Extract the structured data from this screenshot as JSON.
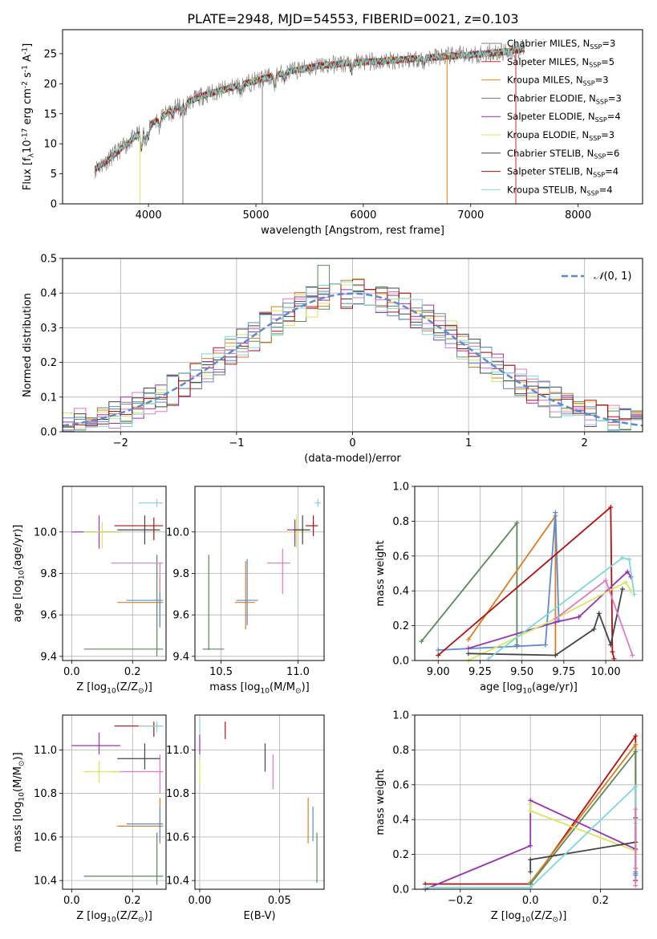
{
  "colors": {
    "chabrier_miles": "#7f7f7f",
    "salpeter_miles": "#d62728",
    "kroupa_miles": "#ff7f0e",
    "chabrier_elodie": "#5a8a5a",
    "salpeter_elodie": "#9b30b0",
    "kroupa_elodie": "#d4e85a",
    "chabrier_stelib": "#444444",
    "salpeter_stelib": "#b01010",
    "kroupa_stelib": "#7fd8d8",
    "normal_curve": "#5b8bd0",
    "pink": "#e377c2",
    "blue": "#5b8bd0",
    "green": "#5a8a5a",
    "orange": "#e07b20"
  },
  "chart_data": [
    {
      "id": "spectrum",
      "type": "line",
      "title": "PLATE=2948, MJD=54553, FIBERID=0021, z=0.103",
      "xlabel": "wavelength [Angstrom, rest frame]",
      "ylabel": "Flux [f$_\\lambda$10$^{-17}$ erg cm$^{-2}$ s$^{-1}$ A$^{-1}$]",
      "xlim": [
        3200,
        8600
      ],
      "ylim": [
        0,
        29
      ],
      "xticks": [
        "4000",
        "5000",
        "6000",
        "7000",
        "8000"
      ],
      "yticks": [
        "0",
        "5",
        "10",
        "15",
        "20",
        "25"
      ],
      "legend": [
        "Chabrier MILES, N$_{SSP}$=3",
        "Salpeter MILES, N$_{SSP}$=5",
        "Kroupa MILES, N$_{SSP}$=3",
        "Chabrier ELODIE, N$_{SSP}$=3",
        "Salpeter ELODIE, N$_{SSP}$=4",
        "Kroupa ELODIE, N$_{SSP}$=3",
        "Chabrier STELIB, N$_{SSP}$=6",
        "Salpeter STELIB, N$_{SSP}$=4",
        "Kroupa STELIB, N$_{SSP}$=4"
      ],
      "continuum": [
        [
          3500,
          5.8
        ],
        [
          3600,
          7
        ],
        [
          3700,
          8.5
        ],
        [
          3800,
          10
        ],
        [
          3900,
          11.5
        ],
        [
          4000,
          13
        ],
        [
          4200,
          15.5
        ],
        [
          4500,
          18
        ],
        [
          4800,
          19.5
        ],
        [
          5000,
          20.5
        ],
        [
          5300,
          22
        ],
        [
          5600,
          23
        ],
        [
          5900,
          23.5
        ],
        [
          6200,
          23.8
        ],
        [
          6500,
          24.2
        ],
        [
          6800,
          24.6
        ],
        [
          7000,
          24.8
        ],
        [
          7300,
          25.3
        ],
        [
          7500,
          25.8
        ]
      ],
      "spikes": [
        [
          4320,
          0
        ],
        [
          5060,
          0
        ],
        [
          6780,
          0
        ],
        [
          7420,
          0
        ],
        [
          3920,
          0
        ]
      ]
    },
    {
      "id": "residuals",
      "type": "histogram",
      "xlabel": "(data-model)/error",
      "ylabel": "Normed distribution",
      "xlim": [
        -2.5,
        2.5
      ],
      "ylim": [
        0,
        0.5
      ],
      "xticks": [
        "−2",
        "−1",
        "0",
        "1",
        "2"
      ],
      "yticks": [
        "0.0",
        "0.1",
        "0.2",
        "0.3",
        "0.4",
        "0.5"
      ],
      "legend": [
        "N(0,1)"
      ],
      "bin_width": 0.1,
      "peak_bin_value": 0.48
    },
    {
      "id": "age_vs_Z",
      "type": "scatter",
      "xlabel": "Z [log$_{10}$(Z/Z$_\\odot$)]",
      "ylabel": "age  [log$_{10}$(age/yr)]",
      "xlim": [
        -0.03,
        0.31
      ],
      "ylim": [
        9.38,
        10.22
      ],
      "xticks": [
        "0.0",
        "0.2"
      ],
      "yticks": [
        "9.4",
        "9.6",
        "9.8",
        "10.0"
      ]
    },
    {
      "id": "age_vs_mass",
      "type": "scatter",
      "xlabel": "mass [log$_{10}$(M/M$_\\odot$)]",
      "ylabel": "",
      "xlim": [
        10.33,
        11.17
      ],
      "ylim": [
        9.38,
        10.22
      ],
      "xticks": [
        "10.5",
        "11.0"
      ],
      "yticks": [
        "9.4",
        "9.6",
        "9.8",
        "10.0"
      ]
    },
    {
      "id": "weight_vs_age",
      "type": "line",
      "xlabel": "age  [log$_{10}$(age/yr)]",
      "ylabel": "mass weight",
      "xlim": [
        8.86,
        10.22
      ],
      "ylim": [
        0,
        1
      ],
      "xticks": [
        "9.00",
        "9.25",
        "9.50",
        "9.75",
        "10.00"
      ],
      "yticks": [
        "0.0",
        "0.2",
        "0.4",
        "0.6",
        "0.8",
        "1.0"
      ]
    },
    {
      "id": "mass_vs_Z",
      "type": "scatter",
      "xlabel": "Z [log$_{10}$(Z/Z$_\\odot$)]",
      "ylabel": "mass [log$_{10}$(M/M$_\\odot$)]",
      "xlim": [
        -0.03,
        0.31
      ],
      "ylim": [
        10.36,
        11.16
      ],
      "xticks": [
        "0.0",
        "0.2"
      ],
      "yticks": [
        "10.4",
        "10.6",
        "10.8",
        "11.0"
      ]
    },
    {
      "id": "mass_vs_ebv",
      "type": "scatter",
      "xlabel": "E(B-V)",
      "ylabel": "",
      "xlim": [
        -0.003,
        0.078
      ],
      "ylim": [
        10.36,
        11.16
      ],
      "xticks": [
        "0.00",
        "0.05"
      ],
      "yticks": [
        "10.4",
        "10.6",
        "10.8",
        "11.0"
      ]
    },
    {
      "id": "weight_vs_Z",
      "type": "line",
      "xlabel": "Z [log$_{10}$(Z/Z$_\\odot$)]",
      "ylabel": "mass weight",
      "xlim": [
        -0.33,
        0.32
      ],
      "ylim": [
        0,
        1
      ],
      "xticks": [
        "−0.2",
        "0.0",
        "0.2"
      ],
      "yticks": [
        "0.0",
        "0.2",
        "0.4",
        "0.6",
        "0.8",
        "1.0"
      ]
    }
  ]
}
